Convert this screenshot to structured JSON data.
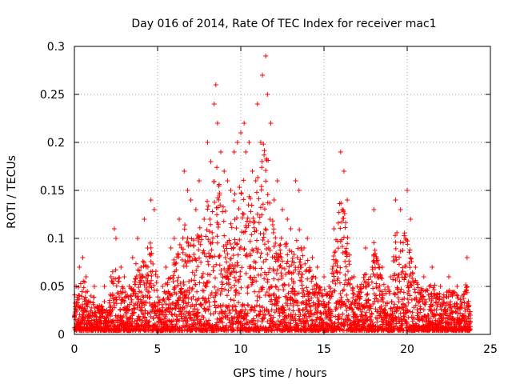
{
  "chart_data": {
    "type": "scatter",
    "title": "Day 016 of 2014, Rate Of TEC Index for receiver mac1",
    "xlabel": "GPS time / hours",
    "ylabel": "ROTI / TECUs",
    "xlim": [
      0,
      25
    ],
    "ylim": [
      0,
      0.3
    ],
    "xticks": [
      0,
      5,
      10,
      15,
      20,
      25
    ],
    "xtick_labels": [
      "0",
      "5",
      "10",
      "15",
      "20",
      "25"
    ],
    "yticks": [
      0,
      0.05,
      0.1,
      0.15,
      0.2,
      0.25,
      0.3
    ],
    "ytick_labels": [
      "0",
      "0.05",
      "0.1",
      "0.15",
      "0.2",
      "0.25",
      "0.3"
    ],
    "grid": true,
    "marker": "+",
    "color": "#ff0000",
    "series": [
      {
        "name": "ROTI",
        "x": [
          0.1,
          0.3,
          0.5,
          0.7,
          1.0,
          1.2,
          1.5,
          1.8,
          2.0,
          2.2,
          2.4,
          2.5,
          2.8,
          3.0,
          3.3,
          3.5,
          3.8,
          4.0,
          4.2,
          4.4,
          4.6,
          4.8,
          5.0,
          5.3,
          5.5,
          5.8,
          6.0,
          6.3,
          6.6,
          6.8,
          7.0,
          7.3,
          7.5,
          7.8,
          8.0,
          8.2,
          8.4,
          8.5,
          8.6,
          8.8,
          9.0,
          9.2,
          9.4,
          9.6,
          9.8,
          10.0,
          10.2,
          10.3,
          10.5,
          10.7,
          10.9,
          11.0,
          11.2,
          11.3,
          11.5,
          11.6,
          11.8,
          12.0,
          12.2,
          12.5,
          12.8,
          13.0,
          13.3,
          13.5,
          13.8,
          14.0,
          14.3,
          14.6,
          15.0,
          15.3,
          15.6,
          16.0,
          16.2,
          16.4,
          16.8,
          17.0,
          17.5,
          17.8,
          18.0,
          18.5,
          19.0,
          19.3,
          19.6,
          20.0,
          20.2,
          20.5,
          21.0,
          21.5,
          22.0,
          22.5,
          23.0,
          23.3,
          23.6,
          23.8
        ],
        "y": [
          0.05,
          0.07,
          0.08,
          0.06,
          0.04,
          0.05,
          0.03,
          0.05,
          0.02,
          0.06,
          0.11,
          0.1,
          0.07,
          0.06,
          0.05,
          0.08,
          0.1,
          0.07,
          0.12,
          0.09,
          0.14,
          0.13,
          0.06,
          0.05,
          0.07,
          0.09,
          0.1,
          0.12,
          0.17,
          0.15,
          0.14,
          0.13,
          0.16,
          0.12,
          0.2,
          0.18,
          0.24,
          0.26,
          0.22,
          0.19,
          0.17,
          0.16,
          0.15,
          0.19,
          0.2,
          0.21,
          0.22,
          0.19,
          0.2,
          0.17,
          0.16,
          0.24,
          0.2,
          0.27,
          0.29,
          0.25,
          0.22,
          0.14,
          0.16,
          0.13,
          0.12,
          0.11,
          0.16,
          0.15,
          0.09,
          0.1,
          0.08,
          0.07,
          0.06,
          0.05,
          0.11,
          0.19,
          0.17,
          0.14,
          0.06,
          0.05,
          0.09,
          0.06,
          0.13,
          0.07,
          0.06,
          0.14,
          0.13,
          0.15,
          0.12,
          0.07,
          0.06,
          0.07,
          0.05,
          0.06,
          0.05,
          0.04,
          0.08,
          0.02
        ]
      }
    ]
  }
}
